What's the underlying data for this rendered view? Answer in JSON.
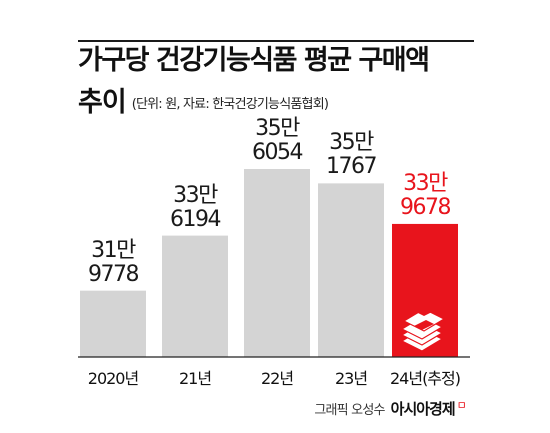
{
  "header": {
    "title_line1": "가구당 건강기능식품 평균 구매액",
    "title_line2": "추이",
    "note": "(단위: 원, 자료: 한국건강기능식품협회)"
  },
  "chart_data": {
    "type": "bar",
    "title": "가구당 건강기능식품 평균 구매액 추이",
    "unit": "원",
    "categories": [
      "2020년",
      "21년",
      "22년",
      "23년",
      "24년(추정)"
    ],
    "values": [
      319778,
      336194,
      356054,
      351767,
      339678
    ],
    "labels": [
      [
        "31만",
        "9778"
      ],
      [
        "33만",
        "6194"
      ],
      [
        "35만",
        "6054"
      ],
      [
        "35만",
        "1767"
      ],
      [
        "33만",
        "9678"
      ]
    ],
    "highlight_index": 4,
    "colors": {
      "bar": "#d4d4d4",
      "highlight": "#e8141c",
      "label": "#1a1a1a",
      "highlight_label": "#e8141c"
    },
    "grid": false
  },
  "credit": {
    "text": "그래픽 오성수",
    "brand": "아시아경제",
    "brand_mark": "ㅁ"
  },
  "icons": {
    "highlight_bar_icon": "money-stack-icon"
  }
}
